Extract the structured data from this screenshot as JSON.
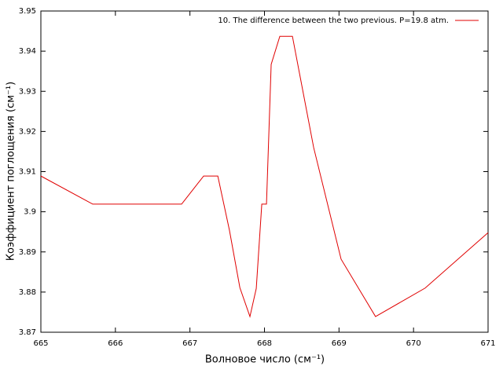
{
  "chart_data": {
    "type": "line",
    "xlabel": "Волновое число (см⁻¹)",
    "ylabel": "Коэффициент поглощения (см⁻¹)",
    "x": [
      665,
      665.696,
      666.888,
      667.184,
      667.374,
      667.53,
      667.67,
      667.805,
      667.89,
      667.964,
      668.027,
      668.09,
      668.206,
      668.375,
      668.66,
      669.028,
      669.49,
      670.156,
      671
    ],
    "series": [
      {
        "name": "10. The difference between the two previous. P=19.8 atm.",
        "color": "#e00000",
        "values": [
          3.9089,
          3.9019,
          3.9019,
          3.9089,
          3.9089,
          3.8954,
          3.8811,
          3.8739,
          3.8809,
          3.9019,
          3.9019,
          3.9367,
          3.9437,
          3.9437,
          3.916,
          3.8882,
          3.8739,
          3.881,
          3.8948
        ]
      }
    ],
    "xlim": [
      665,
      671
    ],
    "xticks": [
      665,
      666,
      667,
      668,
      669,
      670,
      671
    ],
    "ylim": [
      3.87,
      3.95
    ],
    "yticks": [
      3.87,
      3.88,
      3.89,
      3.9,
      3.91,
      3.92,
      3.93,
      3.94,
      3.95
    ],
    "legend": "top-right"
  }
}
